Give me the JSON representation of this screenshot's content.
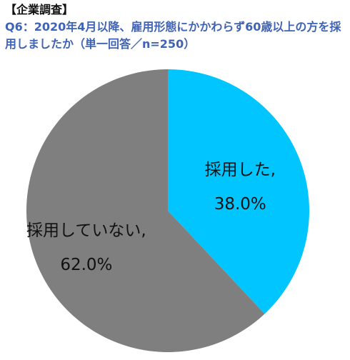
{
  "header": {
    "survey_type": "【企業調査】",
    "question": "Q6：2020年4月以降、雇用形態にかかわらず60歳以上の方を採用しましたか（単一回答／n=250）"
  },
  "chart_data": {
    "type": "pie",
    "title": "Q6：2020年4月以降、雇用形態にかかわらず60歳以上の方を採用しましたか（単一回答／n=250）",
    "start_angle": "12 o'clock, clockwise",
    "slices": [
      {
        "label": "採用した,",
        "value": 38.0,
        "value_label": "38.0%",
        "color": "#00C5FF"
      },
      {
        "label": "採用していない,",
        "value": 62.0,
        "value_label": "62.0%",
        "color": "#7F7F7F"
      }
    ]
  }
}
